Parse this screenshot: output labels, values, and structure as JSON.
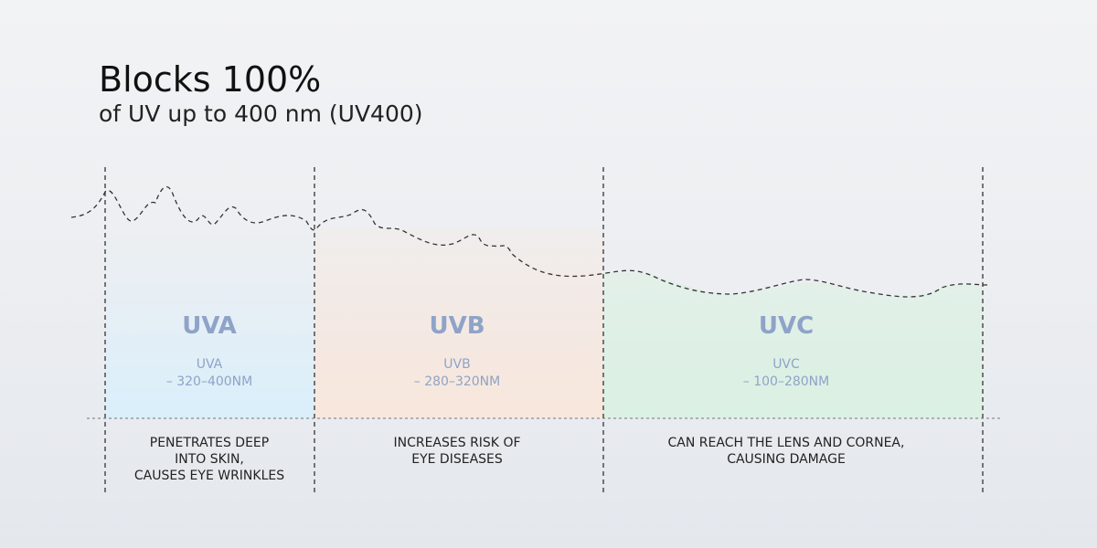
{
  "header": {
    "title": "Blocks 100%",
    "subtitle": "of UV up to 400 nm (UV400)"
  },
  "bands": [
    {
      "name": "UVA",
      "range_lines": [
        "UVA",
        "– 320–400NM"
      ],
      "description_lines": [
        "PENETRATES DEEP",
        "INTO SKIN,",
        "CAUSES EYE WRINKLES"
      ]
    },
    {
      "name": "UVB",
      "range_lines": [
        "UVB",
        "– 280–320NM"
      ],
      "description_lines": [
        "INCREASES RISK OF",
        "EYE DISEASES"
      ]
    },
    {
      "name": "UVC",
      "range_lines": [
        "UVC",
        "– 100–280NM"
      ],
      "description_lines": [
        "CAN REACH THE LENS AND CORNEA,",
        "CAUSING DAMAGE"
      ]
    }
  ]
}
